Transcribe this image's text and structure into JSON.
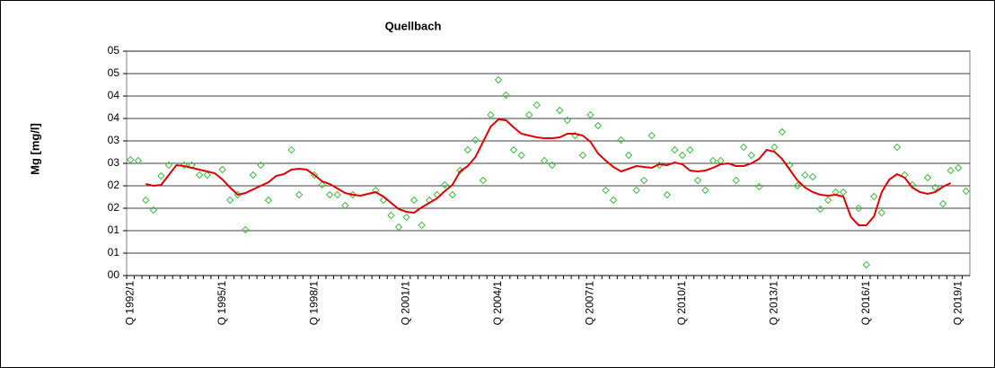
{
  "chart_data": {
    "type": "scatter",
    "title": "Quellbach",
    "y_label": "Mg [mg/l]",
    "categories": [
      "Q 1992/1",
      null,
      null,
      null,
      null,
      null,
      null,
      null,
      null,
      null,
      null,
      null,
      "Q 1995/1",
      null,
      null,
      null,
      null,
      null,
      null,
      null,
      null,
      null,
      null,
      null,
      "Q 1998/1",
      null,
      null,
      null,
      null,
      null,
      null,
      null,
      null,
      null,
      null,
      null,
      "Q 2001/1",
      null,
      null,
      null,
      null,
      null,
      null,
      null,
      null,
      null,
      null,
      null,
      "Q 2004/1",
      null,
      null,
      null,
      null,
      null,
      null,
      null,
      null,
      null,
      null,
      null,
      "Q 2007/1",
      null,
      null,
      null,
      null,
      null,
      null,
      null,
      null,
      null,
      null,
      null,
      "Q 2010/1",
      null,
      null,
      null,
      null,
      null,
      null,
      null,
      null,
      null,
      null,
      null,
      "Q 2013/1",
      null,
      null,
      null,
      null,
      null,
      null,
      null,
      null,
      null,
      null,
      null,
      "Q 2016/1",
      null,
      null,
      null,
      null,
      null,
      null,
      null,
      null,
      null,
      null,
      null,
      "Q 2019/1",
      null
    ],
    "series": [
      {
        "kind": "points",
        "color": "#44bb44",
        "values": [
          2.58,
          2.56,
          1.68,
          1.46,
          2.22,
          2.46,
          null,
          2.46,
          2.46,
          2.24,
          2.24,
          null,
          2.36,
          1.68,
          1.8,
          1.02,
          2.24,
          2.46,
          1.68,
          null,
          null,
          2.8,
          1.8,
          null,
          2.24,
          2.02,
          1.8,
          1.8,
          1.56,
          1.8,
          null,
          null,
          1.9,
          1.68,
          1.34,
          1.08,
          1.3,
          1.68,
          1.12,
          1.68,
          1.8,
          2.02,
          1.8,
          2.34,
          2.8,
          3.02,
          2.12,
          3.58,
          4.36,
          4.02,
          2.8,
          2.68,
          3.58,
          3.8,
          2.56,
          2.46,
          3.68,
          3.46,
          3.12,
          2.68,
          3.58,
          3.34,
          1.9,
          1.68,
          3.02,
          2.68,
          1.9,
          2.12,
          3.12,
          2.46,
          1.8,
          2.8,
          2.68,
          2.8,
          2.12,
          1.9,
          2.56,
          2.56,
          null,
          2.12,
          2.86,
          2.68,
          1.98,
          null,
          2.86,
          3.2,
          2.46,
          2.0,
          2.24,
          2.2,
          1.48,
          1.68,
          1.86,
          1.86,
          null,
          1.5,
          0.24,
          1.76,
          1.4,
          null,
          2.86,
          2.24,
          2.02,
          null,
          2.18,
          1.96,
          1.6,
          2.34,
          2.4,
          1.88
        ]
      },
      {
        "kind": "line",
        "color": "#e00000",
        "values": [
          null,
          null,
          2.04,
          2.0,
          2.02,
          2.24,
          2.46,
          2.44,
          2.4,
          2.36,
          2.32,
          2.28,
          2.14,
          1.96,
          1.8,
          1.84,
          1.92,
          2.0,
          2.08,
          2.22,
          2.26,
          2.36,
          2.38,
          2.36,
          2.24,
          2.1,
          2.04,
          1.94,
          1.84,
          1.8,
          1.78,
          1.82,
          1.86,
          1.76,
          1.62,
          1.48,
          1.42,
          1.4,
          1.52,
          1.62,
          1.72,
          1.88,
          2.02,
          2.32,
          2.44,
          2.64,
          2.98,
          3.32,
          3.48,
          3.46,
          3.3,
          3.16,
          3.12,
          3.08,
          3.06,
          3.06,
          3.08,
          3.16,
          3.16,
          3.12,
          2.98,
          2.72,
          2.56,
          2.42,
          2.32,
          2.38,
          2.44,
          2.42,
          2.4,
          2.48,
          2.46,
          2.52,
          2.48,
          2.34,
          2.32,
          2.34,
          2.4,
          2.48,
          2.5,
          2.44,
          2.44,
          2.5,
          2.6,
          2.8,
          2.76,
          2.6,
          2.36,
          2.12,
          1.96,
          1.86,
          1.8,
          1.78,
          1.8,
          1.76,
          1.3,
          1.12,
          1.12,
          1.32,
          1.86,
          2.14,
          2.26,
          2.18,
          1.96,
          1.86,
          1.82,
          1.86,
          1.98,
          2.06,
          null,
          null
        ]
      }
    ],
    "ylim": [
      0,
      5
    ],
    "yticks": [
      {
        "value": 0,
        "label": "00"
      },
      {
        "value": 0.5,
        "label": "01"
      },
      {
        "value": 1,
        "label": "01"
      },
      {
        "value": 1.5,
        "label": "02"
      },
      {
        "value": 2,
        "label": "02"
      },
      {
        "value": 2.5,
        "label": "03"
      },
      {
        "value": 3,
        "label": "03"
      },
      {
        "value": 3.5,
        "label": "04"
      },
      {
        "value": 4,
        "label": "04"
      },
      {
        "value": 4.5,
        "label": "05"
      },
      {
        "value": 5,
        "label": "05"
      }
    ],
    "grid": true
  }
}
